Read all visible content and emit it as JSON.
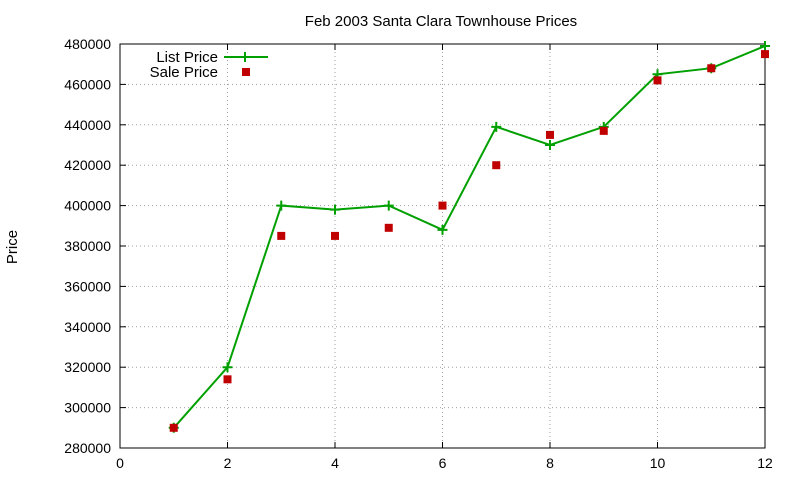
{
  "chart_data": {
    "type": "line",
    "title": "Feb 2003 Santa Clara Townhouse Prices",
    "xlabel": "",
    "ylabel": "Price",
    "xlim": [
      0,
      12
    ],
    "ylim": [
      280000,
      480000
    ],
    "x_ticks": [
      0,
      2,
      4,
      6,
      8,
      10,
      12
    ],
    "y_ticks": [
      280000,
      300000,
      320000,
      340000,
      360000,
      380000,
      400000,
      420000,
      440000,
      460000,
      480000
    ],
    "grid": true,
    "legend_position": "top-left",
    "series": [
      {
        "name": "List Price",
        "style": "line+plus-markers",
        "color": "#00a000",
        "x": [
          1,
          2,
          3,
          4,
          5,
          6,
          7,
          8,
          9,
          10,
          11,
          12
        ],
        "y": [
          290000,
          320000,
          400000,
          398000,
          400000,
          388000,
          439000,
          430000,
          439000,
          465000,
          468000,
          479000
        ]
      },
      {
        "name": "Sale Price",
        "style": "square-markers",
        "color": "#c00000",
        "x": [
          1,
          2,
          3,
          4,
          5,
          6,
          7,
          8,
          9,
          10,
          11,
          12
        ],
        "y": [
          290000,
          314000,
          385000,
          385000,
          389000,
          400000,
          420000,
          435000,
          437000,
          462000,
          468000,
          475000
        ]
      }
    ]
  }
}
